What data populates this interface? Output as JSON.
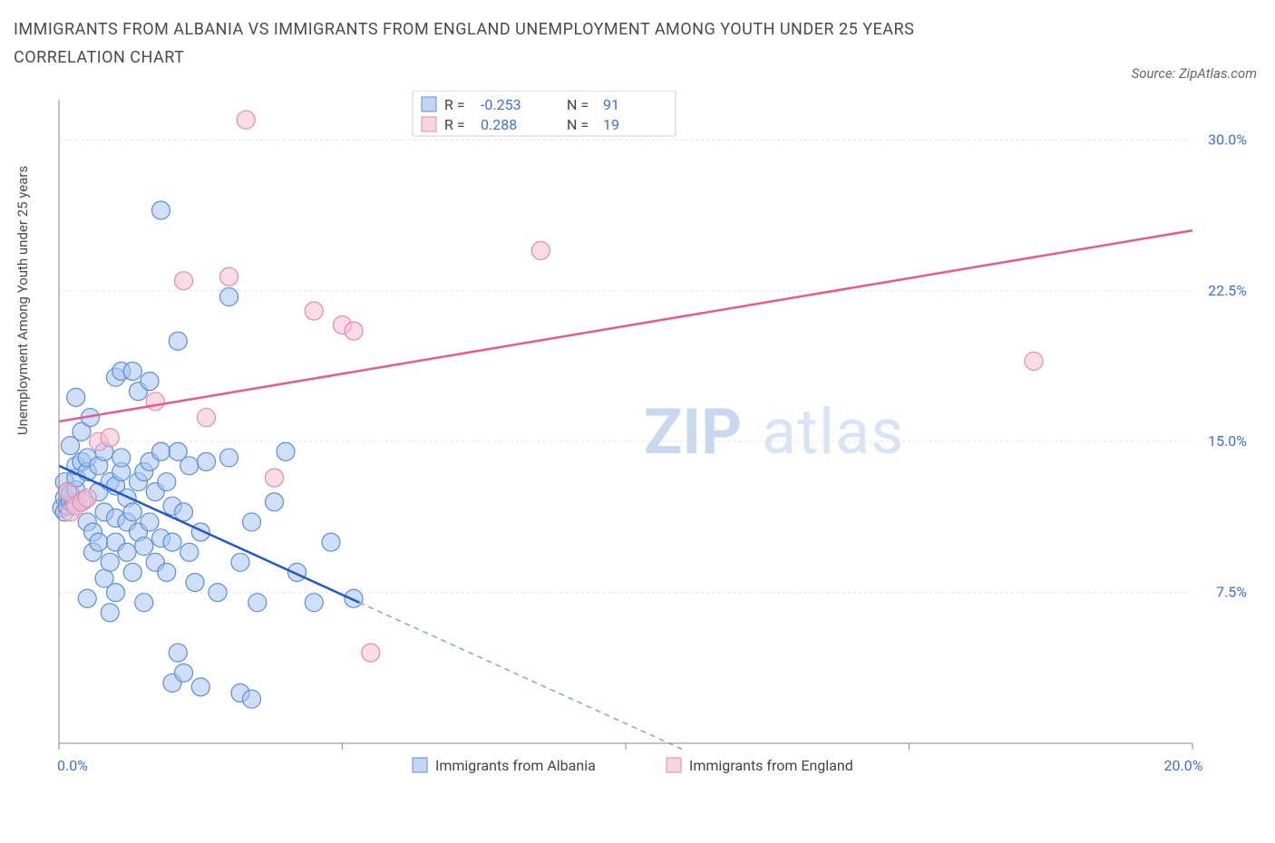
{
  "title": "IMMIGRANTS FROM ALBANIA VS IMMIGRANTS FROM ENGLAND UNEMPLOYMENT AMONG YOUTH UNDER 25 YEARS CORRELATION CHART",
  "source": "Source: ZipAtlas.com",
  "ylabel": "Unemployment Among Youth under 25 years",
  "watermark_1": "ZIP",
  "watermark_2": "atlas",
  "chart": {
    "type": "scatter",
    "background_color": "#ffffff",
    "grid_color": "#e4e4e4",
    "axis_color": "#888888",
    "tick_label_color": "#3b6fd6",
    "xlim": [
      0,
      20
    ],
    "ylim": [
      0,
      32
    ],
    "x_ticks": [
      0,
      5,
      10,
      15,
      20
    ],
    "x_tick_labels": [
      "0.0%",
      "",
      "",
      "",
      "20.0%"
    ],
    "y_ticks": [
      7.5,
      15.0,
      22.5,
      30.0
    ],
    "y_tick_labels": [
      "7.5%",
      "15.0%",
      "22.5%",
      "30.0%"
    ],
    "series": {
      "albania": {
        "label": "Immigrants from Albania",
        "color_fill": "#a8c5f0",
        "color_stroke": "#5a8dd8",
        "marker_radius": 10,
        "fill_opacity": 0.55,
        "r_value": "-0.253",
        "n_value": "91",
        "trend_line_color": "#2258c9",
        "trend": {
          "x1": 0,
          "y1": 13.8,
          "x2": 5.3,
          "y2": 7.0
        },
        "trend_extrapolate": {
          "x1": 5.3,
          "y1": 7.0,
          "x2": 11.0,
          "y2": -0.3
        },
        "points": [
          [
            0.05,
            11.7
          ],
          [
            0.1,
            12.2
          ],
          [
            0.1,
            13.0
          ],
          [
            0.1,
            11.5
          ],
          [
            0.15,
            12.5
          ],
          [
            0.15,
            11.8
          ],
          [
            0.2,
            12.0
          ],
          [
            0.2,
            12.4
          ],
          [
            0.2,
            14.8
          ],
          [
            0.25,
            11.9
          ],
          [
            0.3,
            12.6
          ],
          [
            0.3,
            13.2
          ],
          [
            0.3,
            17.2
          ],
          [
            0.3,
            13.8
          ],
          [
            0.4,
            15.5
          ],
          [
            0.4,
            14.0
          ],
          [
            0.45,
            12.1
          ],
          [
            0.5,
            11.0
          ],
          [
            0.5,
            13.5
          ],
          [
            0.5,
            14.2
          ],
          [
            0.5,
            7.2
          ],
          [
            0.55,
            16.2
          ],
          [
            0.6,
            9.5
          ],
          [
            0.6,
            10.5
          ],
          [
            0.7,
            13.8
          ],
          [
            0.7,
            10.0
          ],
          [
            0.7,
            12.5
          ],
          [
            0.8,
            11.5
          ],
          [
            0.8,
            8.2
          ],
          [
            0.8,
            14.5
          ],
          [
            0.9,
            13.0
          ],
          [
            0.9,
            9.0
          ],
          [
            0.9,
            6.5
          ],
          [
            1.0,
            11.2
          ],
          [
            1.0,
            18.2
          ],
          [
            1.0,
            12.8
          ],
          [
            1.0,
            10.0
          ],
          [
            1.0,
            7.5
          ],
          [
            1.1,
            13.5
          ],
          [
            1.1,
            18.5
          ],
          [
            1.1,
            14.2
          ],
          [
            1.2,
            9.5
          ],
          [
            1.2,
            11.0
          ],
          [
            1.2,
            12.2
          ],
          [
            1.3,
            18.5
          ],
          [
            1.3,
            11.5
          ],
          [
            1.3,
            8.5
          ],
          [
            1.4,
            13.0
          ],
          [
            1.4,
            10.5
          ],
          [
            1.4,
            17.5
          ],
          [
            1.5,
            13.5
          ],
          [
            1.5,
            9.8
          ],
          [
            1.5,
            7.0
          ],
          [
            1.6,
            14.0
          ],
          [
            1.6,
            18.0
          ],
          [
            1.6,
            11.0
          ],
          [
            1.7,
            9.0
          ],
          [
            1.7,
            12.5
          ],
          [
            1.8,
            14.5
          ],
          [
            1.8,
            26.5
          ],
          [
            1.8,
            10.2
          ],
          [
            1.9,
            13.0
          ],
          [
            1.9,
            8.5
          ],
          [
            2.0,
            11.8
          ],
          [
            2.0,
            10.0
          ],
          [
            2.0,
            3.0
          ],
          [
            2.1,
            14.5
          ],
          [
            2.1,
            20.0
          ],
          [
            2.1,
            4.5
          ],
          [
            2.2,
            11.5
          ],
          [
            2.2,
            3.5
          ],
          [
            2.3,
            9.5
          ],
          [
            2.3,
            13.8
          ],
          [
            2.4,
            8.0
          ],
          [
            2.5,
            10.5
          ],
          [
            2.5,
            2.8
          ],
          [
            2.6,
            14.0
          ],
          [
            2.8,
            7.5
          ],
          [
            3.0,
            14.2
          ],
          [
            3.0,
            22.2
          ],
          [
            3.2,
            9.0
          ],
          [
            3.2,
            2.5
          ],
          [
            3.4,
            11.0
          ],
          [
            3.4,
            2.2
          ],
          [
            3.5,
            7.0
          ],
          [
            3.8,
            12.0
          ],
          [
            4.0,
            14.5
          ],
          [
            4.2,
            8.5
          ],
          [
            4.5,
            7.0
          ],
          [
            4.8,
            10.0
          ],
          [
            5.2,
            7.2
          ]
        ]
      },
      "england": {
        "label": "Immigrants from England",
        "color_fill": "#f5c0d3",
        "color_stroke": "#e389ab",
        "marker_radius": 10,
        "fill_opacity": 0.55,
        "r_value": "0.288",
        "n_value": "19",
        "trend_line_color": "#e75a8b",
        "trend": {
          "x1": 0,
          "y1": 16.0,
          "x2": 20,
          "y2": 25.5
        },
        "points": [
          [
            0.15,
            12.5
          ],
          [
            0.2,
            11.5
          ],
          [
            0.3,
            11.8
          ],
          [
            0.4,
            12.0
          ],
          [
            0.5,
            12.2
          ],
          [
            0.7,
            15.0
          ],
          [
            0.9,
            15.2
          ],
          [
            1.7,
            17.0
          ],
          [
            2.2,
            23.0
          ],
          [
            2.6,
            16.2
          ],
          [
            3.0,
            23.2
          ],
          [
            3.3,
            31.0
          ],
          [
            3.8,
            13.2
          ],
          [
            4.5,
            21.5
          ],
          [
            5.0,
            20.8
          ],
          [
            5.2,
            20.5
          ],
          [
            5.5,
            4.5
          ],
          [
            8.5,
            24.5
          ],
          [
            17.2,
            19.0
          ]
        ]
      }
    },
    "legend_stats": {
      "r_label": "R =",
      "n_label": "N ="
    }
  }
}
